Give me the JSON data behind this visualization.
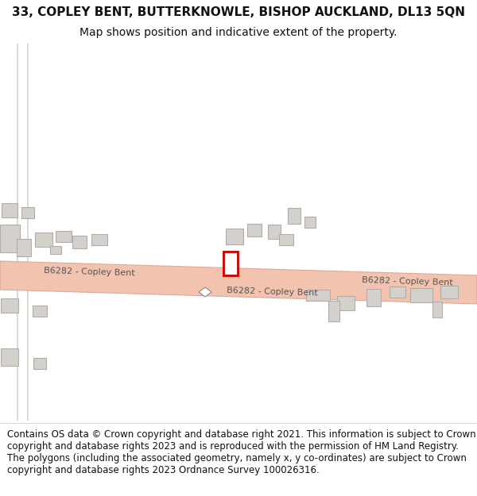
{
  "title_line1": "33, COPLEY BENT, BUTTERKNOWLE, BISHOP AUCKLAND, DL13 5QN",
  "title_line2": "Map shows position and indicative extent of the property.",
  "footer_text": "Contains OS data © Crown copyright and database right 2021. This information is subject to Crown copyright and database rights 2023 and is reproduced with the permission of HM Land Registry. The polygons (including the associated geometry, namely x, y co-ordinates) are subject to Crown copyright and database rights 2023 Ordnance Survey 100026316.",
  "background_color": "#ffffff",
  "map_bg_color": "#ffffff",
  "road_color": "#f2c4b0",
  "road_border_color": "#dda898",
  "building_color": "#d4d0cc",
  "building_outline": "#b0aca8",
  "highlight_color": "#cc0000",
  "title_fontsize": 11,
  "subtitle_fontsize": 10,
  "footer_fontsize": 8.5,
  "road_label_fontsize": 8,
  "road_label_color": "#555555"
}
